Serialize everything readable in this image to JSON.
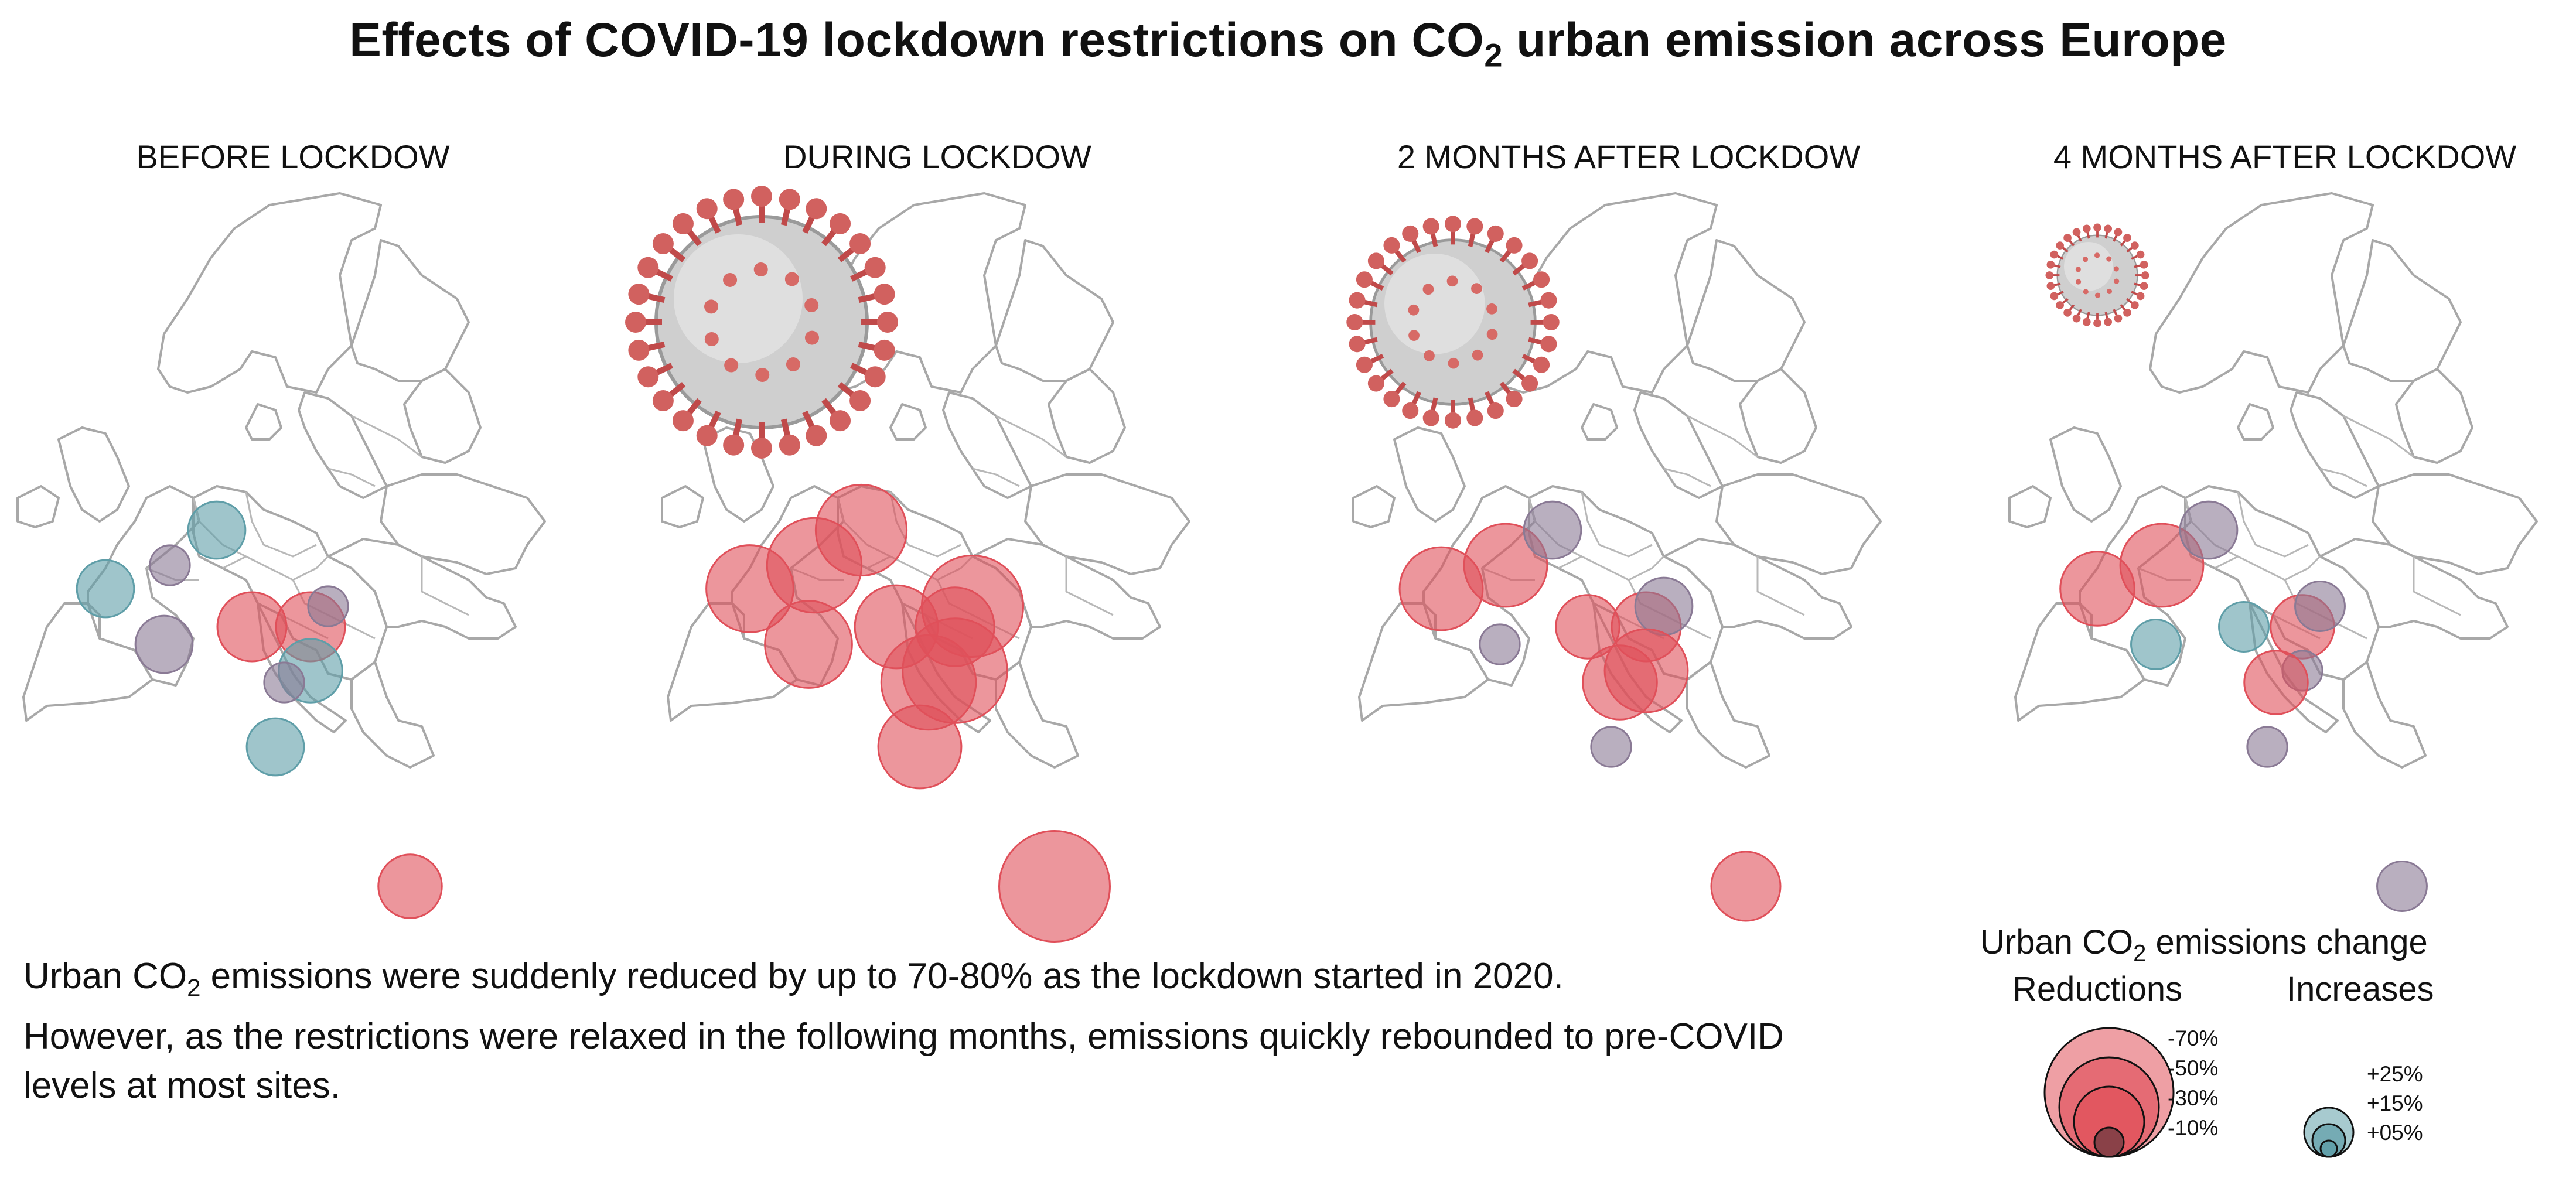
{
  "title": {
    "prefix": "Effects of COVID-19 lockdown restrictions on CO",
    "sub": "2",
    "suffix": " urban emission across Europe"
  },
  "panels": [
    {
      "title": "BEFORE LOCKDOW",
      "virus_scale": 0
    },
    {
      "title": "DURING LOCKDOW",
      "virus_scale": 1.0
    },
    {
      "title": "2 MONTHS AFTER LOCKDOW",
      "virus_scale": 0.78
    },
    {
      "title": "4 MONTHS AFTER LOCKDOW",
      "virus_scale": 0.38
    }
  ],
  "caption": {
    "line1_prefix": "Urban CO",
    "line1_sub": "2",
    "line1_suffix": " emissions were suddenly reduced by up to 70-80% as the lockdown started in 2020.",
    "line2": "However, as the restrictions were relaxed in the following months, emissions quickly rebounded to pre-COVID",
    "line3": "levels at most sites."
  },
  "legend": {
    "title_prefix": "Urban CO",
    "title_sub": "2",
    "title_suffix": " emissions change",
    "reductions_label": "Reductions",
    "increases_label": "Increases",
    "reduction_steps": [
      "-70%",
      "-50%",
      "-30%",
      "-10%"
    ],
    "increase_steps": [
      "+25%",
      "+15%",
      "+05%"
    ]
  },
  "colors": {
    "reduction": "#e0505a",
    "increase": "#5f9ea8",
    "neutral": "#8a7a95",
    "map_line": "#a8a8a8"
  },
  "chart_data": {
    "type": "scatter",
    "description_kind": "proportional symbol maps (4 panels)",
    "panels": [
      "BEFORE LOCKDOW",
      "DURING LOCKDOW",
      "2 MONTHS AFTER LOCKDOW",
      "4 MONTHS AFTER LOCKDOW"
    ],
    "sites": [
      {
        "changes": [
          15,
          -45,
          -40,
          -30
        ]
      },
      {
        "changes": [
          -5,
          -55,
          -40,
          -40
        ]
      },
      {
        "changes": [
          15,
          -50,
          -15,
          -15
        ]
      },
      {
        "changes": [
          -25,
          -40,
          -20,
          10
        ]
      },
      {
        "changes": [
          -25,
          -35,
          -25,
          -20
        ]
      },
      {
        "changes": [
          -5,
          -65,
          -15,
          -10
        ]
      },
      {
        "changes": [
          20,
          -70,
          -40,
          -5
        ]
      },
      {
        "changes": [
          -5,
          -55,
          -30,
          -20
        ]
      },
      {
        "changes": [
          15,
          -40,
          -5,
          5
        ]
      },
      {
        "changes": [
          -15,
          -45,
          -5,
          10
        ]
      },
      {
        "changes": [
          -20,
          -80,
          -25,
          -10
        ]
      }
    ]
  }
}
